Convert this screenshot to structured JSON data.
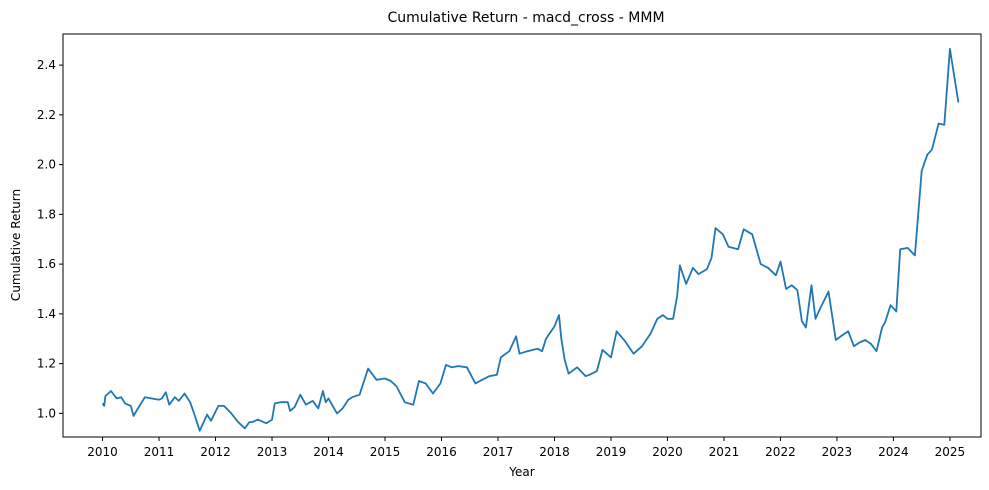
{
  "chart_data": {
    "type": "line",
    "title": "Cumulative Return - macd_cross - MMM",
    "xlabel": "Year",
    "ylabel": "Cumulative Return",
    "xlim": [
      2009.3,
      2025.55
    ],
    "ylim": [
      0.905,
      2.525
    ],
    "x_ticks": [
      2010,
      2011,
      2012,
      2013,
      2014,
      2015,
      2016,
      2017,
      2018,
      2019,
      2020,
      2021,
      2022,
      2023,
      2024,
      2025
    ],
    "x_tick_labels": [
      "2010",
      "2011",
      "2012",
      "2013",
      "2014",
      "2015",
      "2016",
      "2017",
      "2018",
      "2019",
      "2020",
      "2021",
      "2022",
      "2023",
      "2024",
      "2025"
    ],
    "y_ticks": [
      1.0,
      1.2,
      1.4,
      1.6,
      1.8,
      2.0,
      2.2,
      2.4
    ],
    "y_tick_labels": [
      "1.0",
      "1.2",
      "1.4",
      "1.6",
      "1.8",
      "2.0",
      "2.2",
      "2.4"
    ],
    "grid": false,
    "line_color": "#1f77b4",
    "series": [
      {
        "x": [
          2010.0,
          2010.03,
          2010.05,
          2010.15,
          2010.25,
          2010.33,
          2010.4,
          2010.5,
          2010.55,
          2010.6,
          2010.75,
          2011.0,
          2011.05,
          2011.12,
          2011.18,
          2011.28,
          2011.35,
          2011.45,
          2011.55,
          2011.62,
          2011.72,
          2011.85,
          2011.92,
          2012.05,
          2012.15,
          2012.28,
          2012.4,
          2012.52,
          2012.6,
          2012.65,
          2012.75,
          2012.8,
          2012.9,
          2013.0,
          2013.05,
          2013.15,
          2013.28,
          2013.32,
          2013.4,
          2013.5,
          2013.6,
          2013.72,
          2013.82,
          2013.9,
          2013.95,
          2014.0,
          2014.05,
          2014.15,
          2014.25,
          2014.35,
          2014.42,
          2014.55,
          2014.7,
          2014.85,
          2015.0,
          2015.1,
          2015.2,
          2015.35,
          2015.5,
          2015.6,
          2015.72,
          2015.85,
          2015.98,
          2016.08,
          2016.18,
          2016.3,
          2016.45,
          2016.6,
          2016.72,
          2016.85,
          2016.98,
          2017.05,
          2017.2,
          2017.32,
          2017.38,
          2017.52,
          2017.7,
          2017.78,
          2017.85,
          2018.0,
          2018.08,
          2018.12,
          2018.18,
          2018.25,
          2018.4,
          2018.55,
          2018.62,
          2018.75,
          2018.85,
          2019.0,
          2019.1,
          2019.25,
          2019.4,
          2019.55,
          2019.7,
          2019.82,
          2019.92,
          2020.0,
          2020.1,
          2020.17,
          2020.22,
          2020.33,
          2020.45,
          2020.55,
          2020.7,
          2020.78,
          2020.85,
          2020.98,
          2021.08,
          2021.25,
          2021.35,
          2021.5,
          2021.65,
          2021.78,
          2021.92,
          2022.0,
          2022.1,
          2022.2,
          2022.3,
          2022.38,
          2022.45,
          2022.55,
          2022.62,
          2022.7,
          2022.85,
          2022.98,
          2023.1,
          2023.2,
          2023.3,
          2023.4,
          2023.5,
          2023.6,
          2023.7,
          2023.8,
          2023.85,
          2023.95,
          2024.05,
          2024.12,
          2024.25,
          2024.38,
          2024.5,
          2024.6,
          2024.68,
          2024.8,
          2024.9,
          2025.0,
          2025.15
        ],
        "y": [
          1.04,
          1.03,
          1.07,
          1.09,
          1.06,
          1.065,
          1.04,
          1.03,
          0.99,
          1.01,
          1.065,
          1.055,
          1.06,
          1.085,
          1.035,
          1.065,
          1.05,
          1.08,
          1.045,
          1.0,
          0.93,
          0.995,
          0.97,
          1.03,
          1.03,
          1.0,
          0.965,
          0.94,
          0.965,
          0.965,
          0.975,
          0.97,
          0.96,
          0.975,
          1.04,
          1.045,
          1.045,
          1.01,
          1.025,
          1.075,
          1.035,
          1.05,
          1.02,
          1.09,
          1.045,
          1.06,
          1.04,
          1.0,
          1.02,
          1.055,
          1.065,
          1.075,
          1.18,
          1.135,
          1.14,
          1.13,
          1.11,
          1.045,
          1.035,
          1.13,
          1.12,
          1.08,
          1.12,
          1.195,
          1.185,
          1.19,
          1.185,
          1.12,
          1.135,
          1.15,
          1.155,
          1.225,
          1.25,
          1.31,
          1.24,
          1.25,
          1.26,
          1.25,
          1.3,
          1.35,
          1.395,
          1.3,
          1.215,
          1.16,
          1.185,
          1.15,
          1.155,
          1.17,
          1.255,
          1.225,
          1.33,
          1.29,
          1.24,
          1.27,
          1.32,
          1.38,
          1.395,
          1.38,
          1.38,
          1.47,
          1.595,
          1.52,
          1.585,
          1.56,
          1.58,
          1.625,
          1.745,
          1.72,
          1.67,
          1.66,
          1.74,
          1.72,
          1.6,
          1.585,
          1.555,
          1.61,
          1.5,
          1.515,
          1.495,
          1.37,
          1.345,
          1.515,
          1.38,
          1.42,
          1.49,
          1.295,
          1.315,
          1.33,
          1.27,
          1.285,
          1.295,
          1.28,
          1.25,
          1.345,
          1.365,
          1.435,
          1.41,
          1.66,
          1.665,
          1.635,
          1.975,
          2.04,
          2.06,
          2.165,
          2.16,
          2.465,
          2.25
        ]
      }
    ]
  }
}
